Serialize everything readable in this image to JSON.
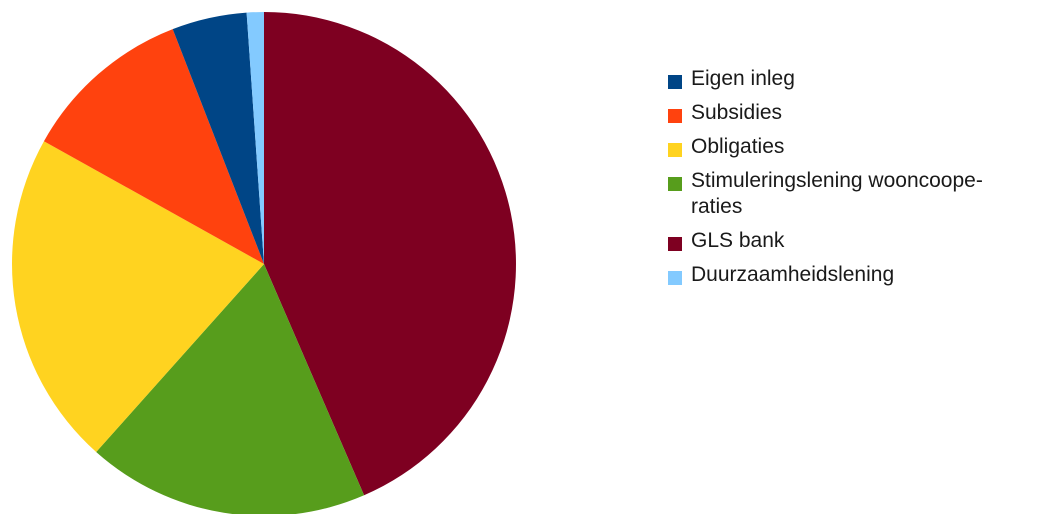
{
  "chart_data": {
    "type": "pie",
    "title": "",
    "legend_position": "right",
    "categories": [
      "Eigen inleg",
      "Subsidies",
      "Obligaties",
      "Stimuleringslening wooncoope-\nraties",
      "GLS bank",
      "Duurzaamheidslening"
    ],
    "values": [
      4.8,
      11.0,
      21.5,
      18.1,
      43.5,
      1.1
    ],
    "colors": [
      "#004586",
      "#ff420e",
      "#ffd320",
      "#579d1c",
      "#7e0021",
      "#83caff"
    ]
  }
}
